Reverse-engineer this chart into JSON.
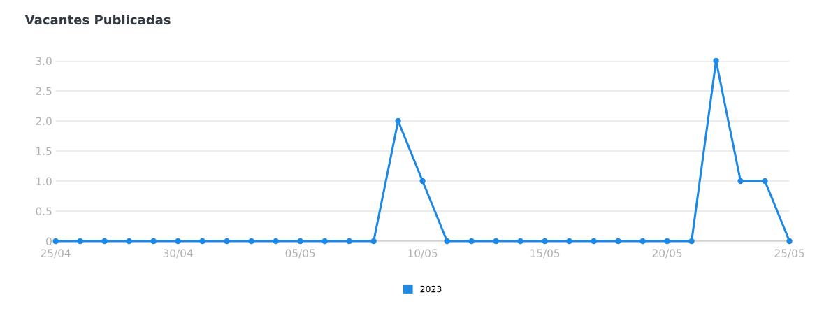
{
  "chart_data": {
    "type": "line",
    "title": "Vacantes Publicadas",
    "categories": [
      "25/04",
      null,
      null,
      null,
      null,
      "30/04",
      null,
      null,
      null,
      null,
      "05/05",
      null,
      null,
      null,
      null,
      "10/05",
      null,
      null,
      null,
      null,
      "15/05",
      null,
      null,
      null,
      null,
      "20/05",
      null,
      null,
      null,
      null,
      "25/05"
    ],
    "series": [
      {
        "name": "2023",
        "color": "#1e88e5",
        "values": [
          0,
          0,
          0,
          0,
          0,
          0,
          0,
          0,
          0,
          0,
          0,
          0,
          0,
          0,
          2,
          1,
          0,
          0,
          0,
          0,
          0,
          0,
          0,
          0,
          0,
          0,
          0,
          3,
          1,
          1,
          0
        ]
      }
    ],
    "ylim": [
      0,
      3
    ],
    "yticks": [
      0,
      {
        "value": 0.5,
        "label": "0.5"
      },
      {
        "value": 1,
        "label": "1.0"
      },
      {
        "value": 1.5,
        "label": "1.5"
      },
      {
        "value": 2,
        "label": "2.0"
      },
      {
        "value": 2.5,
        "label": "2.5"
      },
      {
        "value": 3,
        "label": "3.0"
      }
    ],
    "grid": "y",
    "legend": "bottom",
    "marker": "circle",
    "line_style": "solid"
  }
}
